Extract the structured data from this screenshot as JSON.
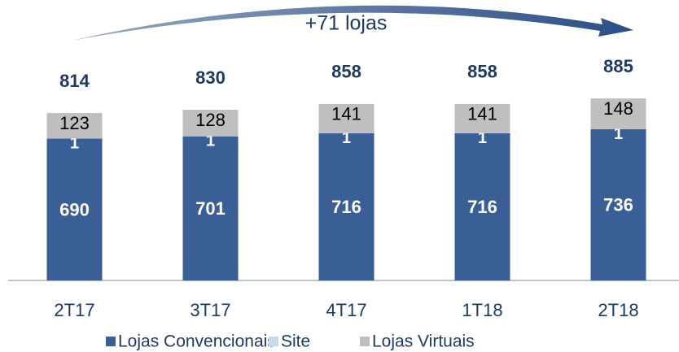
{
  "chart_data": {
    "type": "stacked_bar",
    "annotation": "+71 lojas",
    "categories": [
      "2T17",
      "3T17",
      "4T17",
      "1T18",
      "2T18"
    ],
    "series": [
      {
        "name": "Lojas Convencionais",
        "color": "#3a5f96",
        "values": [
          690,
          701,
          716,
          716,
          736
        ]
      },
      {
        "name": "Site",
        "color": "#c5d9f1",
        "values": [
          1,
          1,
          1,
          1,
          1
        ]
      },
      {
        "name": "Lojas Virtuais",
        "color": "#bfbfbf",
        "values": [
          123,
          128,
          141,
          141,
          148
        ]
      }
    ],
    "totals": [
      814,
      830,
      858,
      858,
      885
    ],
    "ylim": [
      0,
      1000
    ]
  }
}
